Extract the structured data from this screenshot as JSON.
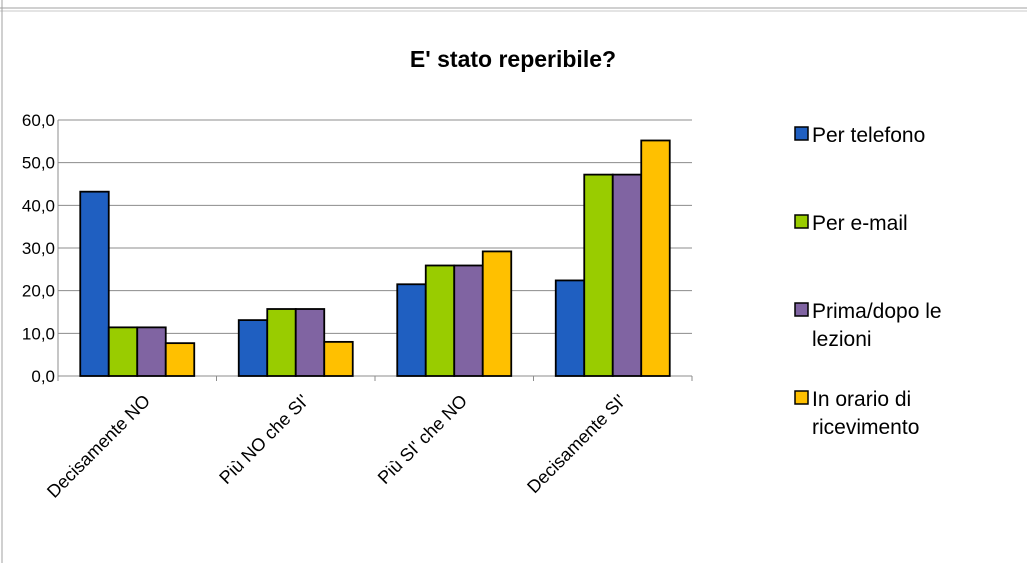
{
  "chart_data": {
    "type": "bar",
    "title": "E' stato reperibile?",
    "xlabel": "",
    "ylabel": "",
    "categories": [
      "Decisamente NO",
      "Più NO che SI'",
      "Più SI' che NO",
      "Decisamente SI'"
    ],
    "series": [
      {
        "name": "Per telefono",
        "color": "#1f5fc1",
        "values": [
          43.2,
          13.1,
          21.5,
          22.4
        ]
      },
      {
        "name": "Per e-mail",
        "color": "#99cc00",
        "values": [
          11.4,
          15.7,
          25.9,
          47.2
        ]
      },
      {
        "name": "Prima/dopo le lezioni",
        "color": "#8064a2",
        "values": [
          11.4,
          15.7,
          25.9,
          47.2
        ]
      },
      {
        "name": "In orario di ricevimento",
        "color": "#ffc000",
        "values": [
          7.7,
          8.0,
          29.2,
          55.2
        ]
      }
    ],
    "ylim": [
      0,
      60
    ],
    "yticks": [
      "0,0",
      "10,0",
      "20,0",
      "30,0",
      "40,0",
      "50,0",
      "60,0"
    ],
    "grid": true,
    "legend": "right"
  }
}
